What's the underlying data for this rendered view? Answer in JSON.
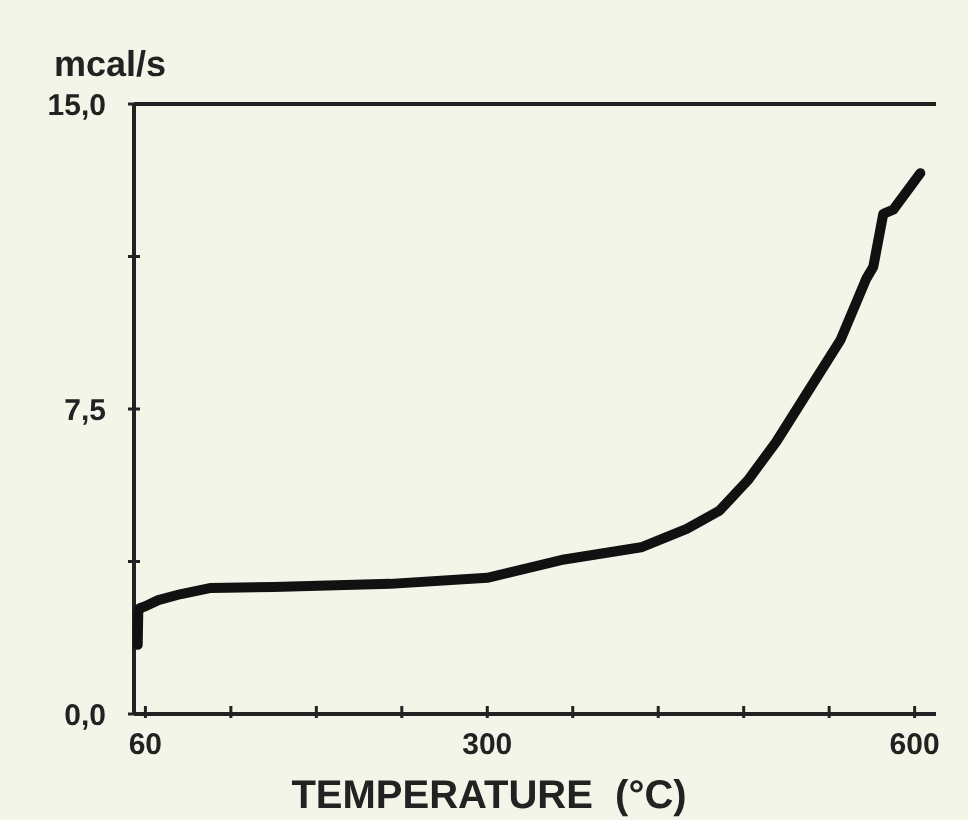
{
  "chart_data": {
    "type": "line",
    "xlabel": "TEMPERATURE  (°C)",
    "ylabel": "mcal/s",
    "x": [
      54.6,
      55,
      56,
      60,
      69,
      85,
      106,
      150,
      232,
      300,
      354,
      408,
      440,
      463,
      483,
      503,
      530,
      548,
      566,
      571,
      578,
      585,
      604
    ],
    "series": [
      {
        "color": "#111111",
        "values": [
          1.7,
          2.5,
          2.6,
          2.65,
          2.8,
          2.95,
          3.1,
          3.12,
          3.2,
          3.35,
          3.8,
          4.1,
          4.55,
          5.0,
          5.75,
          6.7,
          8.2,
          9.2,
          10.7,
          11.0,
          12.3,
          12.4,
          13.3
        ]
      }
    ],
    "xlim": [
      52,
      615
    ],
    "ylim": [
      0,
      15
    ],
    "xticks": [
      60,
      {
        "value": 120,
        "label": null
      },
      {
        "value": 180,
        "label": null
      },
      {
        "value": 240,
        "label": null
      },
      300,
      {
        "value": 360,
        "label": null
      },
      {
        "value": 420,
        "label": null
      },
      {
        "value": 480,
        "label": null
      },
      {
        "value": 540,
        "label": null
      },
      600
    ],
    "yticks": [
      {
        "value": 0,
        "label": "0,0"
      },
      {
        "value": 3.75,
        "label": null
      },
      {
        "value": 7.5,
        "label": "7,5"
      },
      {
        "value": 11.25,
        "label": null
      },
      {
        "value": 15,
        "label": "15,0"
      }
    ],
    "grid": false,
    "marker": "none",
    "line_style": "solid"
  }
}
